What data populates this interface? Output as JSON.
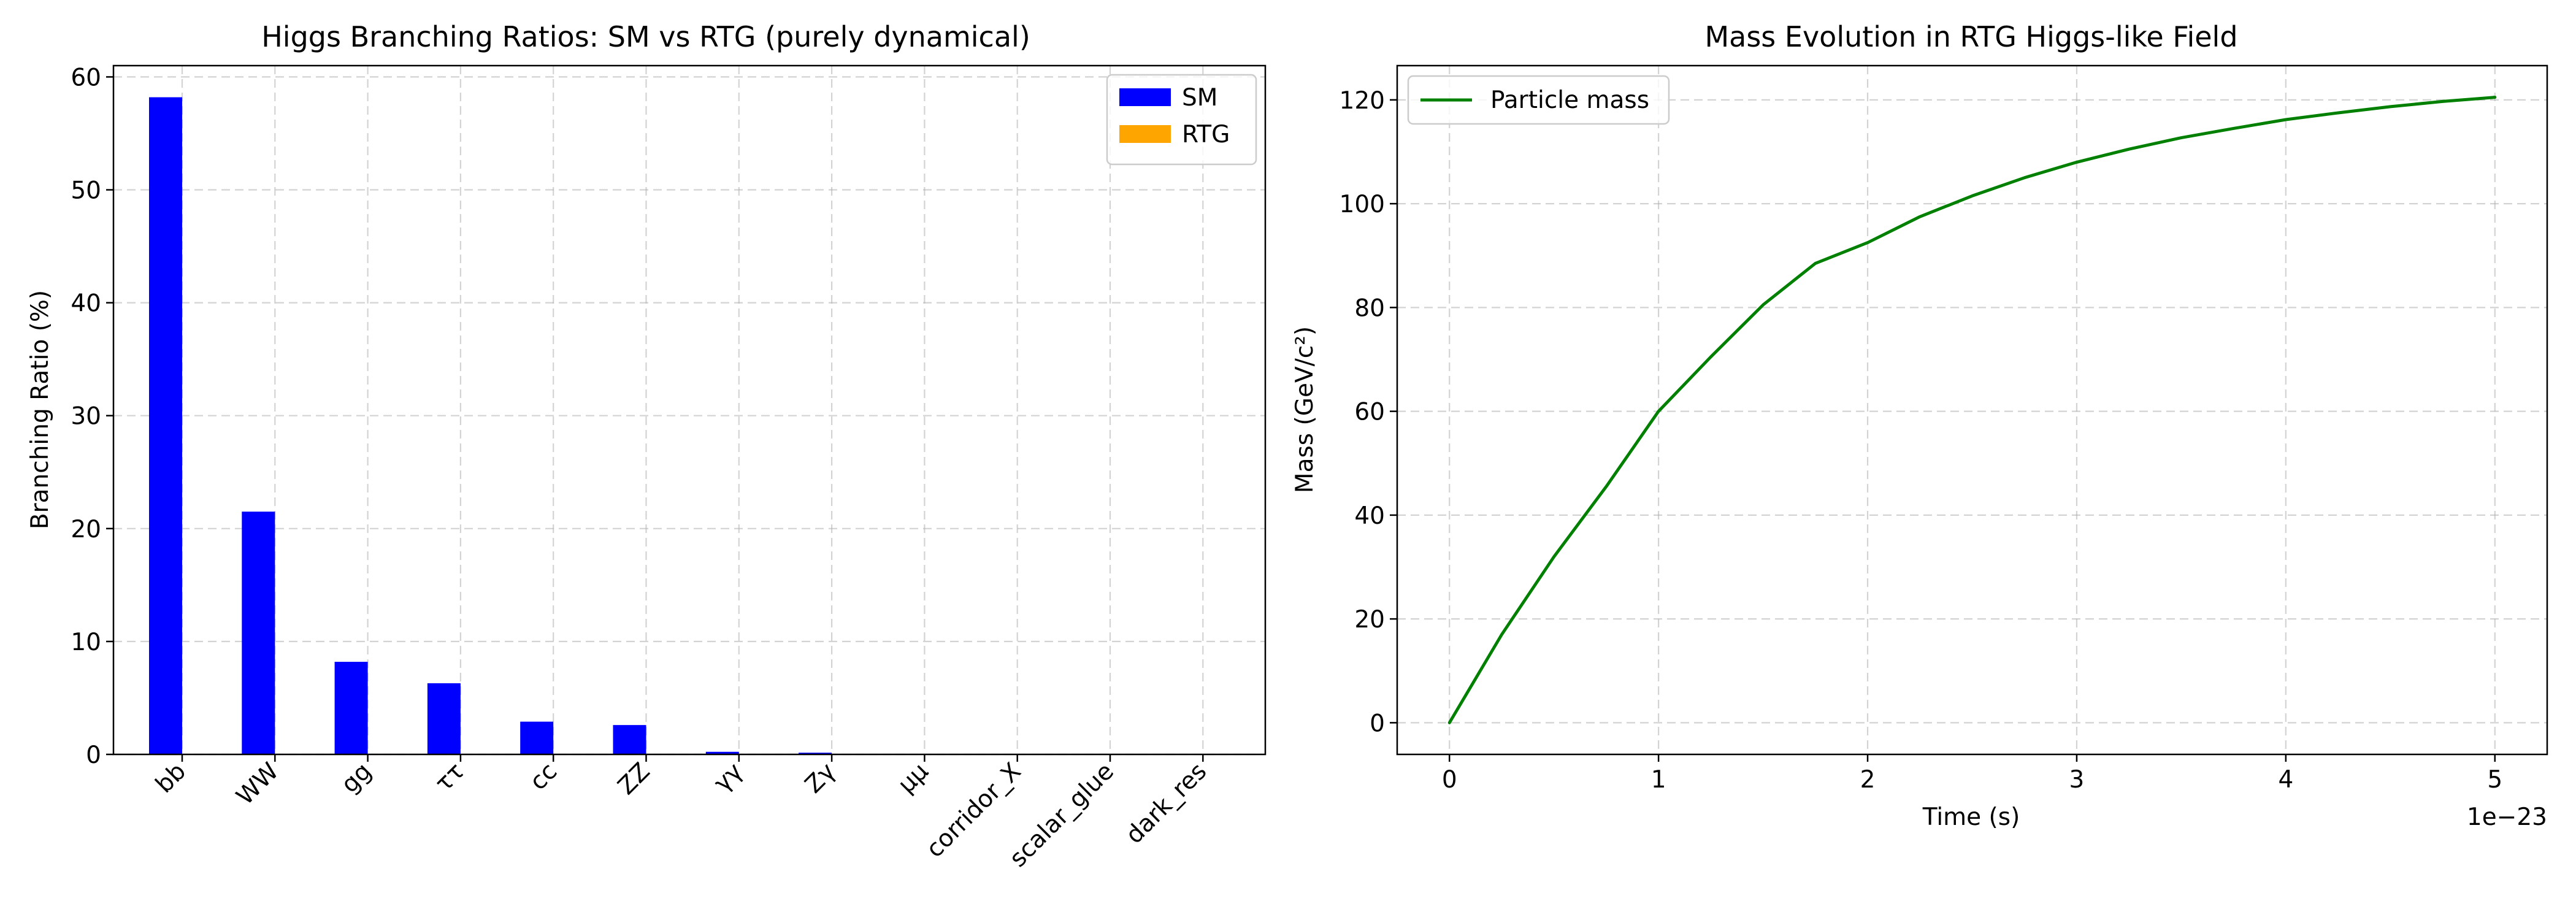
{
  "chart_data": [
    {
      "type": "bar",
      "title": "Higgs Branching Ratios: SM vs RTG (purely dynamical)",
      "xlabel": "",
      "ylabel": "Branching Ratio (%)",
      "ylim": [
        0,
        61
      ],
      "yticks": [
        "0",
        "10",
        "20",
        "30",
        "40",
        "50",
        "60"
      ],
      "categories": [
        "bb",
        "WW",
        "gg",
        "ττ",
        "cc",
        "ZZ",
        "γγ",
        "Zγ",
        "μμ",
        "corridor_X",
        "scalar_glue",
        "dark_res"
      ],
      "series": [
        {
          "name": "SM",
          "color": "#0000ff",
          "values": [
            58.2,
            21.5,
            8.2,
            6.3,
            2.9,
            2.6,
            0.23,
            0.15,
            0.02,
            0,
            0,
            0
          ]
        },
        {
          "name": "RTG",
          "color": "#ffa500",
          "values": [
            0,
            0,
            0,
            0,
            0,
            0,
            0,
            0,
            0,
            0,
            0,
            0
          ]
        }
      ],
      "grid": true,
      "legend_position": "top-right"
    },
    {
      "type": "line",
      "title": "Mass Evolution in RTG Higgs-like Field",
      "xlabel": "Time (s)",
      "ylabel": "Mass (GeV/c²)",
      "x_offset_label": "1e−23",
      "xticks": [
        "0",
        "1",
        "2",
        "3",
        "4",
        "5"
      ],
      "yticks": [
        "0",
        "20",
        "40",
        "60",
        "80",
        "100",
        "120"
      ],
      "xlim": [
        -0.25,
        5.25
      ],
      "ylim": [
        -6.1,
        126.6
      ],
      "series": [
        {
          "name": "Particle mass",
          "color": "#008000",
          "x": [
            0,
            0.25,
            0.5,
            0.75,
            1.0,
            1.25,
            1.5,
            1.75,
            2.0,
            2.25,
            2.5,
            2.75,
            3.0,
            3.25,
            3.5,
            3.75,
            4.0,
            4.25,
            4.5,
            4.75,
            5.0
          ],
          "y": [
            0,
            17.0,
            32.0,
            45.5,
            60.0,
            70.5,
            80.5,
            88.5,
            92.5,
            97.5,
            101.5,
            105.0,
            108.0,
            110.5,
            112.7,
            114.5,
            116.2,
            117.5,
            118.7,
            119.7,
            120.5
          ]
        }
      ],
      "grid": true,
      "legend_position": "top-left"
    }
  ]
}
